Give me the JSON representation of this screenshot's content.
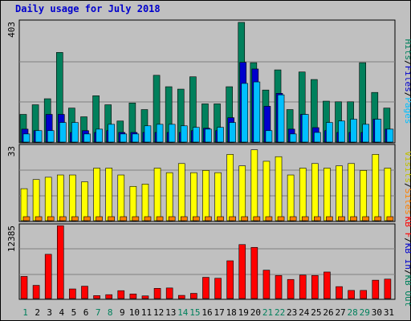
{
  "title": "Daily usage for July 2018",
  "chart_data": {
    "type": "bar",
    "title": "Daily usage for July 2018",
    "days": [
      "1",
      "2",
      "3",
      "4",
      "5",
      "6",
      "7",
      "8",
      "9",
      "10",
      "11",
      "12",
      "13",
      "14",
      "15",
      "16",
      "17",
      "18",
      "19",
      "20",
      "21",
      "22",
      "23",
      "24",
      "25",
      "26",
      "27",
      "28",
      "29",
      "30",
      "31"
    ],
    "weekend_days": [
      "1",
      "7",
      "8",
      "14",
      "15",
      "21",
      "22",
      "28",
      "29"
    ],
    "panels": [
      {
        "id": "hits-files-pages",
        "max_label": "403",
        "ymax": 403,
        "right_labels": [
          {
            "text": "Hits",
            "color": "#00805c"
          },
          {
            "text": "/",
            "color": "#000000"
          },
          {
            "text": "Files",
            "color": "#0000cc"
          },
          {
            "text": "/",
            "color": "#000000"
          },
          {
            "text": "Pages",
            "color": "#00bfff"
          }
        ],
        "series": [
          {
            "name": "Hits",
            "color": "#00805c",
            "values": [
              92,
              124,
              144,
              298,
              113,
              84,
              154,
              124,
              70,
              130,
              108,
              222,
              184,
              176,
              217,
              127,
              127,
              184,
              398,
              264,
              173,
              240,
              108,
              233,
              208,
              136,
              134,
              134,
              264,
              165,
              113
            ]
          },
          {
            "name": "Files",
            "color": "#0000cc",
            "values": [
              43,
              38,
              92,
              92,
              32,
              38,
              32,
              38,
              32,
              32,
              32,
              32,
              32,
              32,
              38,
              46,
              38,
              81,
              265,
              243,
              119,
              162,
              43,
              92,
              48,
              38,
              32,
              32,
              32,
              76,
              43
            ]
          },
          {
            "name": "Pages",
            "color": "#00bfff",
            "values": [
              27,
              38,
              38,
              65,
              65,
              27,
              43,
              59,
              27,
              27,
              54,
              59,
              59,
              54,
              49,
              43,
              49,
              65,
              195,
              200,
              38,
              157,
              27,
              92,
              32,
              65,
              70,
              76,
              59,
              76,
              43
            ]
          }
        ]
      },
      {
        "id": "visits-sites",
        "max_label": "33",
        "ymax": 33,
        "right_labels": [
          {
            "text": "Visits",
            "color": "#c0c000"
          },
          {
            "text": "/",
            "color": "#000000"
          },
          {
            "text": "Sites",
            "color": "#ff8000"
          }
        ],
        "series": [
          {
            "name": "Visits",
            "color": "#ffff00",
            "values": [
              14,
              18,
              19,
              20,
              20,
              17,
              23,
              23,
              20,
              15,
              16,
              23,
              21,
              25,
              21,
              22,
              21,
              29,
              24,
              31,
              26,
              28,
              20,
              23,
              25,
              23,
              24,
              25,
              22,
              29,
              23
            ]
          },
          {
            "name": "Sites",
            "color": "#ff8000",
            "values": [
              1,
              1,
              1,
              1,
              1,
              1,
              1,
              1,
              1,
              1,
              1,
              1,
              1,
              1,
              1,
              1,
              1,
              1,
              1,
              1,
              1,
              1,
              1,
              1,
              1,
              1,
              1,
              1,
              1,
              1,
              1
            ]
          }
        ]
      },
      {
        "id": "kbytes",
        "max_label": "12385",
        "ymax": 12385,
        "right_labels": [
          {
            "text": "KB F",
            "color": "#ff0000"
          },
          {
            "text": "/",
            "color": "#000000"
          },
          {
            "text": "KB In",
            "color": "#0000cc"
          },
          {
            "text": "/",
            "color": "#000000"
          },
          {
            "text": "KB Out",
            "color": "#00805c"
          }
        ],
        "series": [
          {
            "name": "KB F",
            "color": "#ff0000",
            "values": [
              3710,
              2210,
              7420,
              12220,
              1610,
              2070,
              490,
              650,
              1320,
              770,
              440,
              1710,
              1770,
              530,
              870,
              3560,
              3400,
              6330,
              9050,
              8580,
              4760,
              3870,
              3200,
              3930,
              3870,
              4450,
              2000,
              1360,
              1360,
              3080,
              3260
            ]
          }
        ]
      }
    ]
  }
}
